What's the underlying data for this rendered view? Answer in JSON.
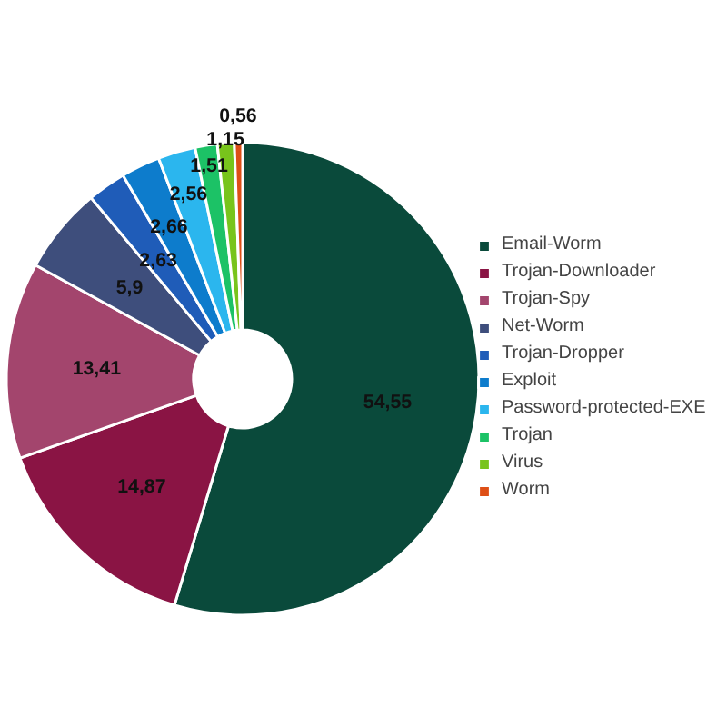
{
  "chart_data": {
    "type": "donut",
    "categories": [
      "Email-Worm",
      "Trojan-Downloader",
      "Trojan-Spy",
      "Net-Worm",
      "Trojan-Dropper",
      "Exploit",
      "Password-protected-EXE",
      "Trojan",
      "Virus",
      "Worm"
    ],
    "values": [
      54.55,
      14.87,
      13.41,
      5.9,
      2.63,
      2.66,
      2.56,
      1.51,
      1.15,
      0.56
    ],
    "value_labels": [
      "54,55",
      "14,87",
      "13,41",
      "5,9",
      "2,63",
      "2,66",
      "2,56",
      "1,51",
      "1,15",
      "0,56"
    ],
    "colors": [
      "#0a4a3b",
      "#8a1444",
      "#a3456d",
      "#3e4e7c",
      "#1f5cb8",
      "#0d7ccc",
      "#2bb6ee",
      "#1cc266",
      "#78c41c",
      "#de4f16"
    ],
    "legend": "right"
  }
}
